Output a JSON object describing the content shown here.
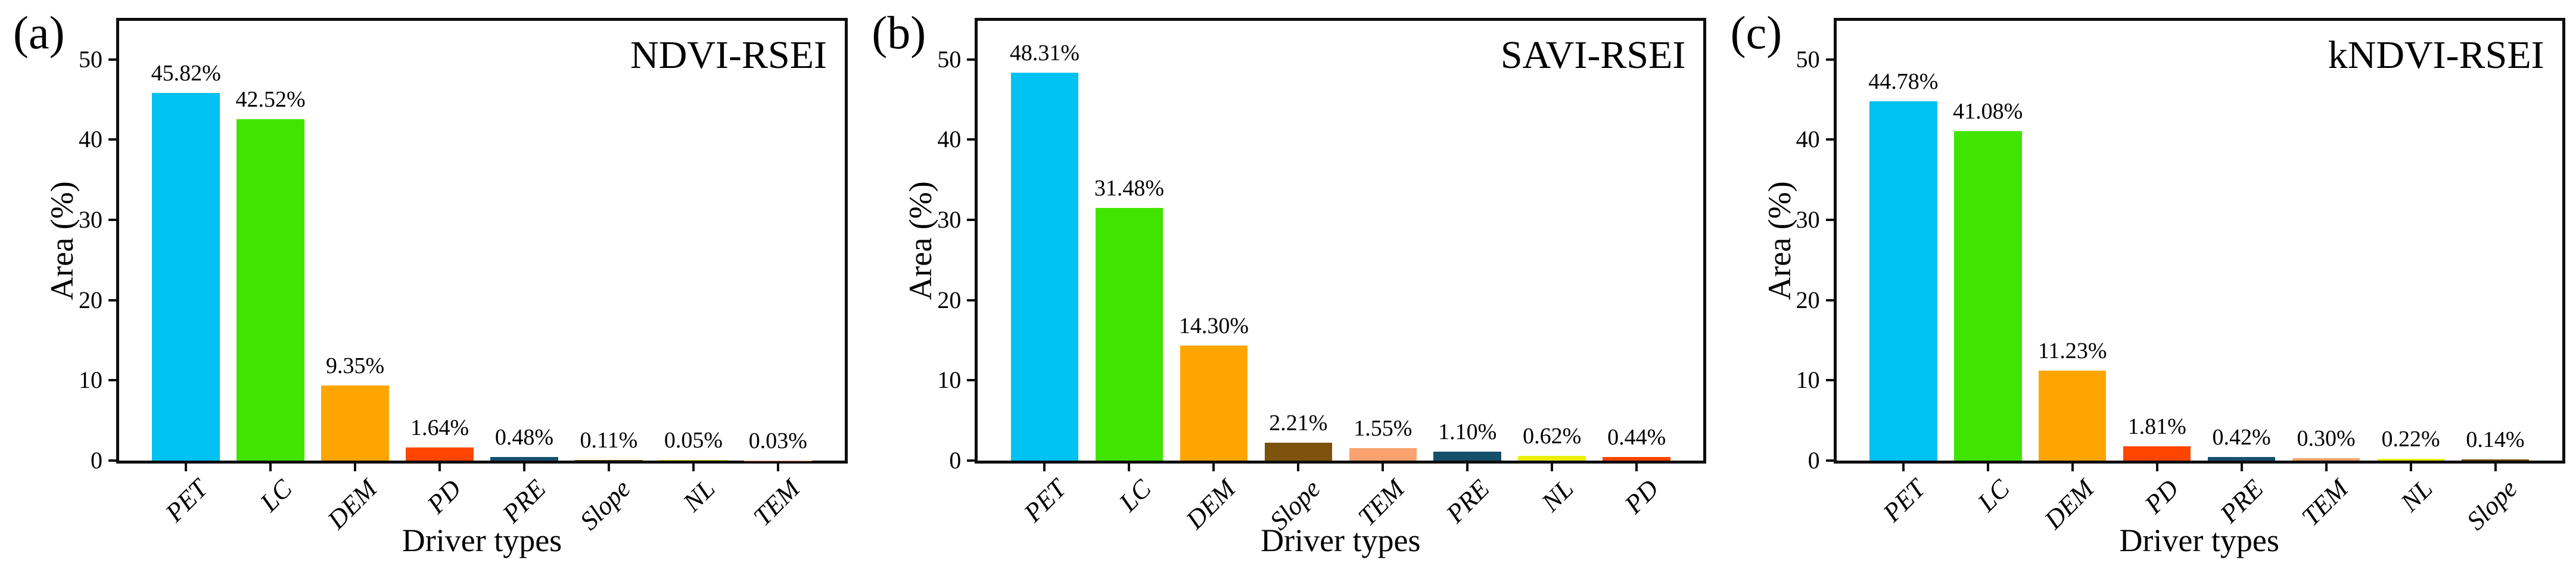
{
  "palette": {
    "PET": "#00c1f2",
    "LC": "#41e400",
    "DEM": "#ffa502",
    "PD": "#ff4500",
    "PRE": "#15506b",
    "Slope": "#7d520a",
    "TEM": "#f9a26e",
    "NL": "#e9f00a"
  },
  "axis_color": "#0d0d0d",
  "chart_data": [
    {
      "type": "bar",
      "panel_letter": "(a)",
      "title": "NDVI-RSEI",
      "xlabel": "Driver types",
      "ylabel": "Area (%)",
      "ylim": [
        0,
        54.8
      ],
      "yticks": [
        0,
        10,
        20,
        30,
        40,
        50
      ],
      "ytick_labels": [
        "0",
        "10",
        "20",
        "30",
        "40",
        "50"
      ],
      "grid": false,
      "categories": [
        "PET",
        "LC",
        "DEM",
        "PD",
        "PRE",
        "Slope",
        "NL",
        "TEM"
      ],
      "values": [
        45.82,
        42.52,
        9.35,
        1.64,
        0.48,
        0.11,
        0.05,
        0.03
      ],
      "data_labels": [
        "45.82%",
        "42.52%",
        "9.35%",
        "1.64%",
        "0.48%",
        "0.11%",
        "0.05%",
        "0.03%"
      ]
    },
    {
      "type": "bar",
      "panel_letter": "(b)",
      "title": "SAVI-RSEI",
      "xlabel": "Driver types",
      "ylabel": "Area (%)",
      "ylim": [
        0,
        54.8
      ],
      "yticks": [
        0,
        10,
        20,
        30,
        40,
        50
      ],
      "ytick_labels": [
        "0",
        "10",
        "20",
        "30",
        "40",
        "50"
      ],
      "grid": false,
      "categories": [
        "PET",
        "LC",
        "DEM",
        "Slope",
        "TEM",
        "PRE",
        "NL",
        "PD"
      ],
      "values": [
        48.31,
        31.48,
        14.3,
        2.21,
        1.55,
        1.1,
        0.62,
        0.44
      ],
      "data_labels": [
        "48.31%",
        "31.48%",
        "14.30%",
        "2.21%",
        "1.55%",
        "1.10%",
        "0.62%",
        "0.44%"
      ]
    },
    {
      "type": "bar",
      "panel_letter": "(c)",
      "title": "kNDVI-RSEI",
      "xlabel": "Driver types",
      "ylabel": "Area (%)",
      "ylim": [
        0,
        54.8
      ],
      "yticks": [
        0,
        10,
        20,
        30,
        40,
        50
      ],
      "ytick_labels": [
        "0",
        "10",
        "20",
        "30",
        "40",
        "50"
      ],
      "grid": false,
      "categories": [
        "PET",
        "LC",
        "DEM",
        "PD",
        "PRE",
        "TEM",
        "NL",
        "Slope"
      ],
      "values": [
        44.78,
        41.08,
        11.23,
        1.81,
        0.42,
        0.3,
        0.22,
        0.14
      ],
      "data_labels": [
        "44.78%",
        "41.08%",
        "11.23%",
        "1.81%",
        "0.42%",
        "0.30%",
        "0.22%",
        "0.14%"
      ]
    }
  ]
}
